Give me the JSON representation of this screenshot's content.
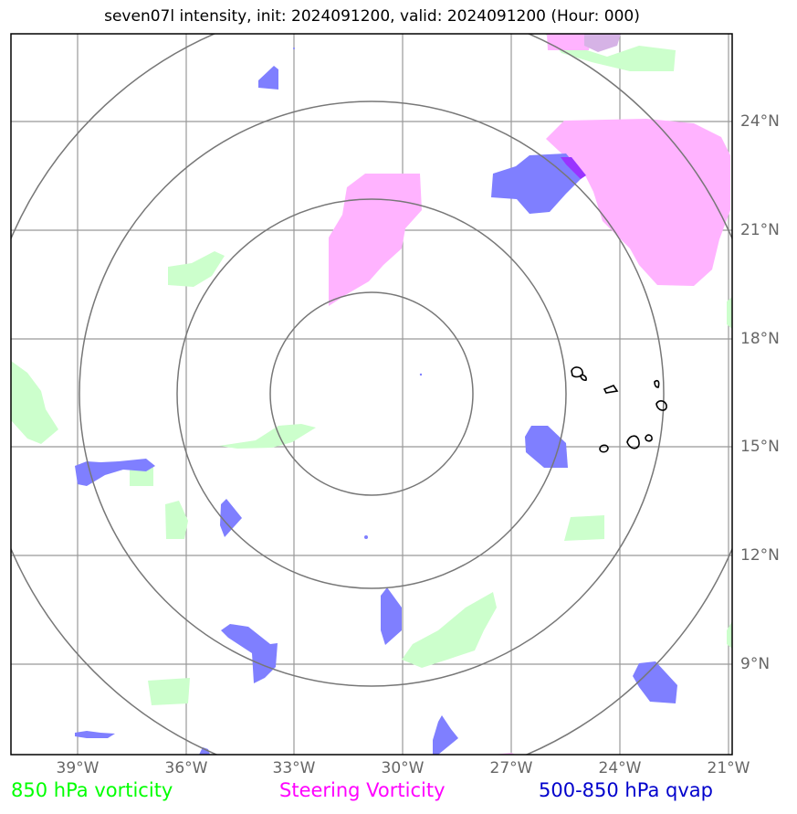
{
  "title": "seven07l intensity, init: 2024091200, valid: 2024091200 (Hour: 000)",
  "lon_labels": [
    "39°W",
    "36°W",
    "33°W",
    "30°W",
    "27°W",
    "24°W",
    "21°W"
  ],
  "lat_labels": [
    "24°N",
    "21°N",
    "18°N",
    "15°N",
    "12°N",
    "9°N"
  ],
  "legend": {
    "green": {
      "label": "850 hPa vorticity",
      "color": "#00ff00"
    },
    "magenta": {
      "label": "Steering Vorticity",
      "color": "#ff00ff"
    },
    "blue": {
      "label": "500-850 hPa qvap",
      "color": "#0000cc"
    }
  },
  "colors": {
    "vorticity_fill": "#ccffcc",
    "steering_fill": "#ffb3ff",
    "qvap_fill": "#7f7fff",
    "grid": "#999999",
    "range_rings": "#777777"
  }
}
